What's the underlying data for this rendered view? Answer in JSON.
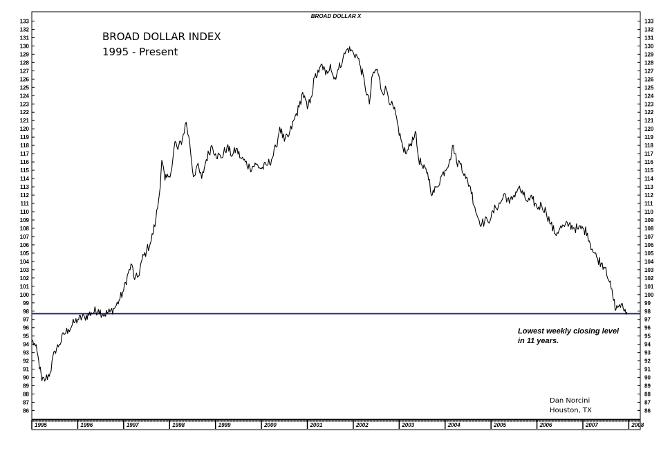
{
  "chart_data": {
    "type": "line",
    "header": "BROAD DOLLAR X",
    "title": "BROAD DOLLAR INDEX",
    "subtitle": "1995 - Present",
    "x_labels": [
      "1995",
      "1996",
      "1997",
      "1998",
      "1999",
      "2000",
      "2001",
      "2002",
      "2003",
      "2004",
      "2005",
      "2006",
      "2007",
      "2008"
    ],
    "ylim": [
      85,
      133
    ],
    "y_ticks": [
      86,
      87,
      88,
      89,
      90,
      91,
      92,
      93,
      94,
      95,
      96,
      97,
      98,
      99,
      100,
      101,
      102,
      103,
      104,
      105,
      106,
      107,
      108,
      109,
      110,
      111,
      112,
      113,
      114,
      115,
      116,
      117,
      118,
      119,
      120,
      121,
      122,
      123,
      124,
      125,
      126,
      127,
      128,
      129,
      130,
      131,
      132,
      133
    ],
    "reference_line": {
      "value": 97.7,
      "color": "#1a237e"
    },
    "annotation": [
      "Lowest weekly closing level",
      "in 11 years."
    ],
    "credit": [
      "Dan Norcini",
      "Houston, TX"
    ],
    "series": [
      {
        "color": "#000000",
        "points": [
          [
            1995.0,
            94.5
          ],
          [
            1995.08,
            93.8
          ],
          [
            1995.15,
            92.0
          ],
          [
            1995.22,
            89.6
          ],
          [
            1995.3,
            89.8
          ],
          [
            1995.4,
            90.6
          ],
          [
            1995.5,
            93.2
          ],
          [
            1995.6,
            94.0
          ],
          [
            1995.7,
            95.2
          ],
          [
            1995.8,
            95.8
          ],
          [
            1995.92,
            96.6
          ],
          [
            1996.0,
            97.0
          ],
          [
            1996.15,
            97.3
          ],
          [
            1996.3,
            97.8
          ],
          [
            1996.45,
            98.2
          ],
          [
            1996.55,
            97.6
          ],
          [
            1996.7,
            97.9
          ],
          [
            1996.82,
            98.5
          ],
          [
            1996.92,
            99.5
          ],
          [
            1997.0,
            100.5
          ],
          [
            1997.1,
            102.6
          ],
          [
            1997.18,
            103.6
          ],
          [
            1997.24,
            101.8
          ],
          [
            1997.32,
            102.2
          ],
          [
            1997.4,
            104.2
          ],
          [
            1997.5,
            105.3
          ],
          [
            1997.6,
            106.5
          ],
          [
            1997.7,
            109.0
          ],
          [
            1997.78,
            112.2
          ],
          [
            1997.83,
            116.2
          ],
          [
            1997.9,
            113.8
          ],
          [
            1997.97,
            114.2
          ],
          [
            1998.05,
            115.3
          ],
          [
            1998.12,
            118.5
          ],
          [
            1998.18,
            117.5
          ],
          [
            1998.28,
            118.8
          ],
          [
            1998.36,
            120.8
          ],
          [
            1998.44,
            118.2
          ],
          [
            1998.52,
            114.2
          ],
          [
            1998.6,
            115.6
          ],
          [
            1998.7,
            114.0
          ],
          [
            1998.8,
            116.3
          ],
          [
            1998.92,
            118.0
          ],
          [
            1999.0,
            117.0
          ],
          [
            1999.12,
            116.5
          ],
          [
            1999.25,
            117.8
          ],
          [
            1999.37,
            116.8
          ],
          [
            1999.45,
            117.6
          ],
          [
            1999.55,
            116.5
          ],
          [
            1999.65,
            116.0
          ],
          [
            1999.75,
            115.3
          ],
          [
            1999.88,
            115.7
          ],
          [
            2000.0,
            115.2
          ],
          [
            2000.12,
            115.6
          ],
          [
            2000.22,
            116.3
          ],
          [
            2000.32,
            117.8
          ],
          [
            2000.4,
            120.2
          ],
          [
            2000.5,
            118.5
          ],
          [
            2000.6,
            119.2
          ],
          [
            2000.72,
            121.2
          ],
          [
            2000.82,
            122.6
          ],
          [
            2000.9,
            124.4
          ],
          [
            2001.0,
            122.4
          ],
          [
            2001.08,
            123.8
          ],
          [
            2001.16,
            126.2
          ],
          [
            2001.25,
            126.8
          ],
          [
            2001.32,
            127.8
          ],
          [
            2001.4,
            126.5
          ],
          [
            2001.5,
            127.8
          ],
          [
            2001.58,
            126.0
          ],
          [
            2001.68,
            127.2
          ],
          [
            2001.78,
            128.6
          ],
          [
            2001.88,
            129.7
          ],
          [
            2002.0,
            129.2
          ],
          [
            2002.08,
            128.8
          ],
          [
            2002.16,
            127.5
          ],
          [
            2002.25,
            125.4
          ],
          [
            2002.35,
            123.0
          ],
          [
            2002.42,
            126.5
          ],
          [
            2002.52,
            127.2
          ],
          [
            2002.62,
            124.5
          ],
          [
            2002.72,
            124.8
          ],
          [
            2002.82,
            123.0
          ],
          [
            2002.92,
            121.8
          ],
          [
            2003.0,
            119.2
          ],
          [
            2003.08,
            117.8
          ],
          [
            2003.16,
            117.0
          ],
          [
            2003.25,
            118.2
          ],
          [
            2003.35,
            119.7
          ],
          [
            2003.42,
            116.5
          ],
          [
            2003.52,
            115.2
          ],
          [
            2003.62,
            114.7
          ],
          [
            2003.72,
            112.0
          ],
          [
            2003.82,
            113.0
          ],
          [
            2003.92,
            114.3
          ],
          [
            2004.0,
            115.0
          ],
          [
            2004.1,
            116.3
          ],
          [
            2004.18,
            118.0
          ],
          [
            2004.25,
            116.0
          ],
          [
            2004.35,
            115.8
          ],
          [
            2004.45,
            114.0
          ],
          [
            2004.55,
            113.0
          ],
          [
            2004.65,
            110.5
          ],
          [
            2004.72,
            109.2
          ],
          [
            2004.8,
            108.6
          ],
          [
            2004.92,
            109.0
          ],
          [
            2005.0,
            109.3
          ],
          [
            2005.1,
            110.5
          ],
          [
            2005.2,
            111.0
          ],
          [
            2005.3,
            112.2
          ],
          [
            2005.4,
            111.0
          ],
          [
            2005.5,
            112.0
          ],
          [
            2005.6,
            112.9
          ],
          [
            2005.7,
            112.0
          ],
          [
            2005.8,
            111.2
          ],
          [
            2005.9,
            111.5
          ],
          [
            2006.0,
            110.5
          ],
          [
            2006.1,
            110.8
          ],
          [
            2006.2,
            110.0
          ],
          [
            2006.3,
            108.5
          ],
          [
            2006.4,
            107.3
          ],
          [
            2006.5,
            108.0
          ],
          [
            2006.6,
            108.2
          ],
          [
            2006.7,
            108.5
          ],
          [
            2006.8,
            108.1
          ],
          [
            2006.9,
            107.9
          ],
          [
            2007.0,
            108.0
          ],
          [
            2007.1,
            107.4
          ],
          [
            2007.2,
            105.5
          ],
          [
            2007.3,
            104.5
          ],
          [
            2007.4,
            103.8
          ],
          [
            2007.5,
            103.3
          ],
          [
            2007.58,
            101.5
          ],
          [
            2007.65,
            99.8
          ],
          [
            2007.72,
            98.2
          ],
          [
            2007.8,
            98.8
          ],
          [
            2007.88,
            98.3
          ],
          [
            2007.96,
            97.9
          ]
        ]
      }
    ]
  }
}
